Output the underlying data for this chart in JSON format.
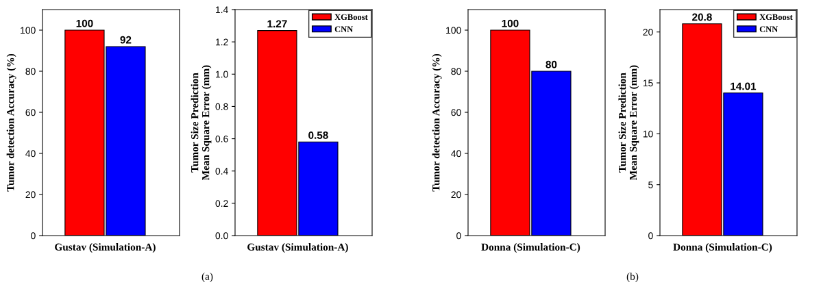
{
  "chart_data": [
    {
      "type": "bar",
      "ylabel": "Tumor detection Accuracy (%)",
      "categories": [
        "Gustav (Simulation-A)"
      ],
      "series": [
        {
          "color": "#ff0000",
          "values": [
            100
          ]
        },
        {
          "color": "#0000ff",
          "values": [
            92
          ]
        }
      ],
      "ylim": [
        0,
        110
      ],
      "yticks": [
        0,
        20,
        40,
        60,
        80,
        100
      ],
      "data_labels": true,
      "legend": false,
      "annotations": [
        "(a)"
      ]
    },
    {
      "type": "bar",
      "ylabel": "Tumor Size Prediction\nMean Square Error (mm)",
      "categories": [
        "Gustav (Simulation-A)"
      ],
      "series": [
        {
          "name": "XGBoost",
          "color": "#ff0000",
          "values": [
            1.27
          ]
        },
        {
          "name": "CNN",
          "color": "#0000ff",
          "values": [
            0.58
          ]
        }
      ],
      "ylim": [
        0,
        1.4
      ],
      "yticks": [
        {
          "value": 0,
          "label": "0.0"
        },
        0.2,
        0.4,
        0.6,
        0.8,
        {
          "value": 1,
          "label": "1.0"
        },
        1.2,
        1.4
      ],
      "data_labels": true,
      "legend": "top right"
    },
    {
      "type": "bar",
      "ylabel": "Tumor detection Accuracy (%)",
      "categories": [
        "Donna (Simulation-C)"
      ],
      "series": [
        {
          "color": "#ff0000",
          "values": [
            100
          ]
        },
        {
          "color": "#0000ff",
          "values": [
            80
          ]
        }
      ],
      "ylim": [
        0,
        110
      ],
      "yticks": [
        0,
        20,
        40,
        60,
        80,
        100
      ],
      "data_labels": true,
      "legend": false,
      "annotations": [
        "(b)"
      ]
    },
    {
      "type": "bar",
      "ylabel": "Tumor Size Prediction\nMean Square Error (mm)",
      "categories": [
        "Donna (Simulation-C)"
      ],
      "series": [
        {
          "name": "XGBoost",
          "color": "#ff0000",
          "values": [
            20.8
          ]
        },
        {
          "name": "CNN",
          "color": "#0000ff",
          "values": [
            14.01
          ]
        }
      ],
      "ylim": [
        0,
        22.2
      ],
      "yticks": [
        0,
        5,
        10,
        15,
        20
      ],
      "data_labels": true,
      "legend": "top right"
    }
  ]
}
